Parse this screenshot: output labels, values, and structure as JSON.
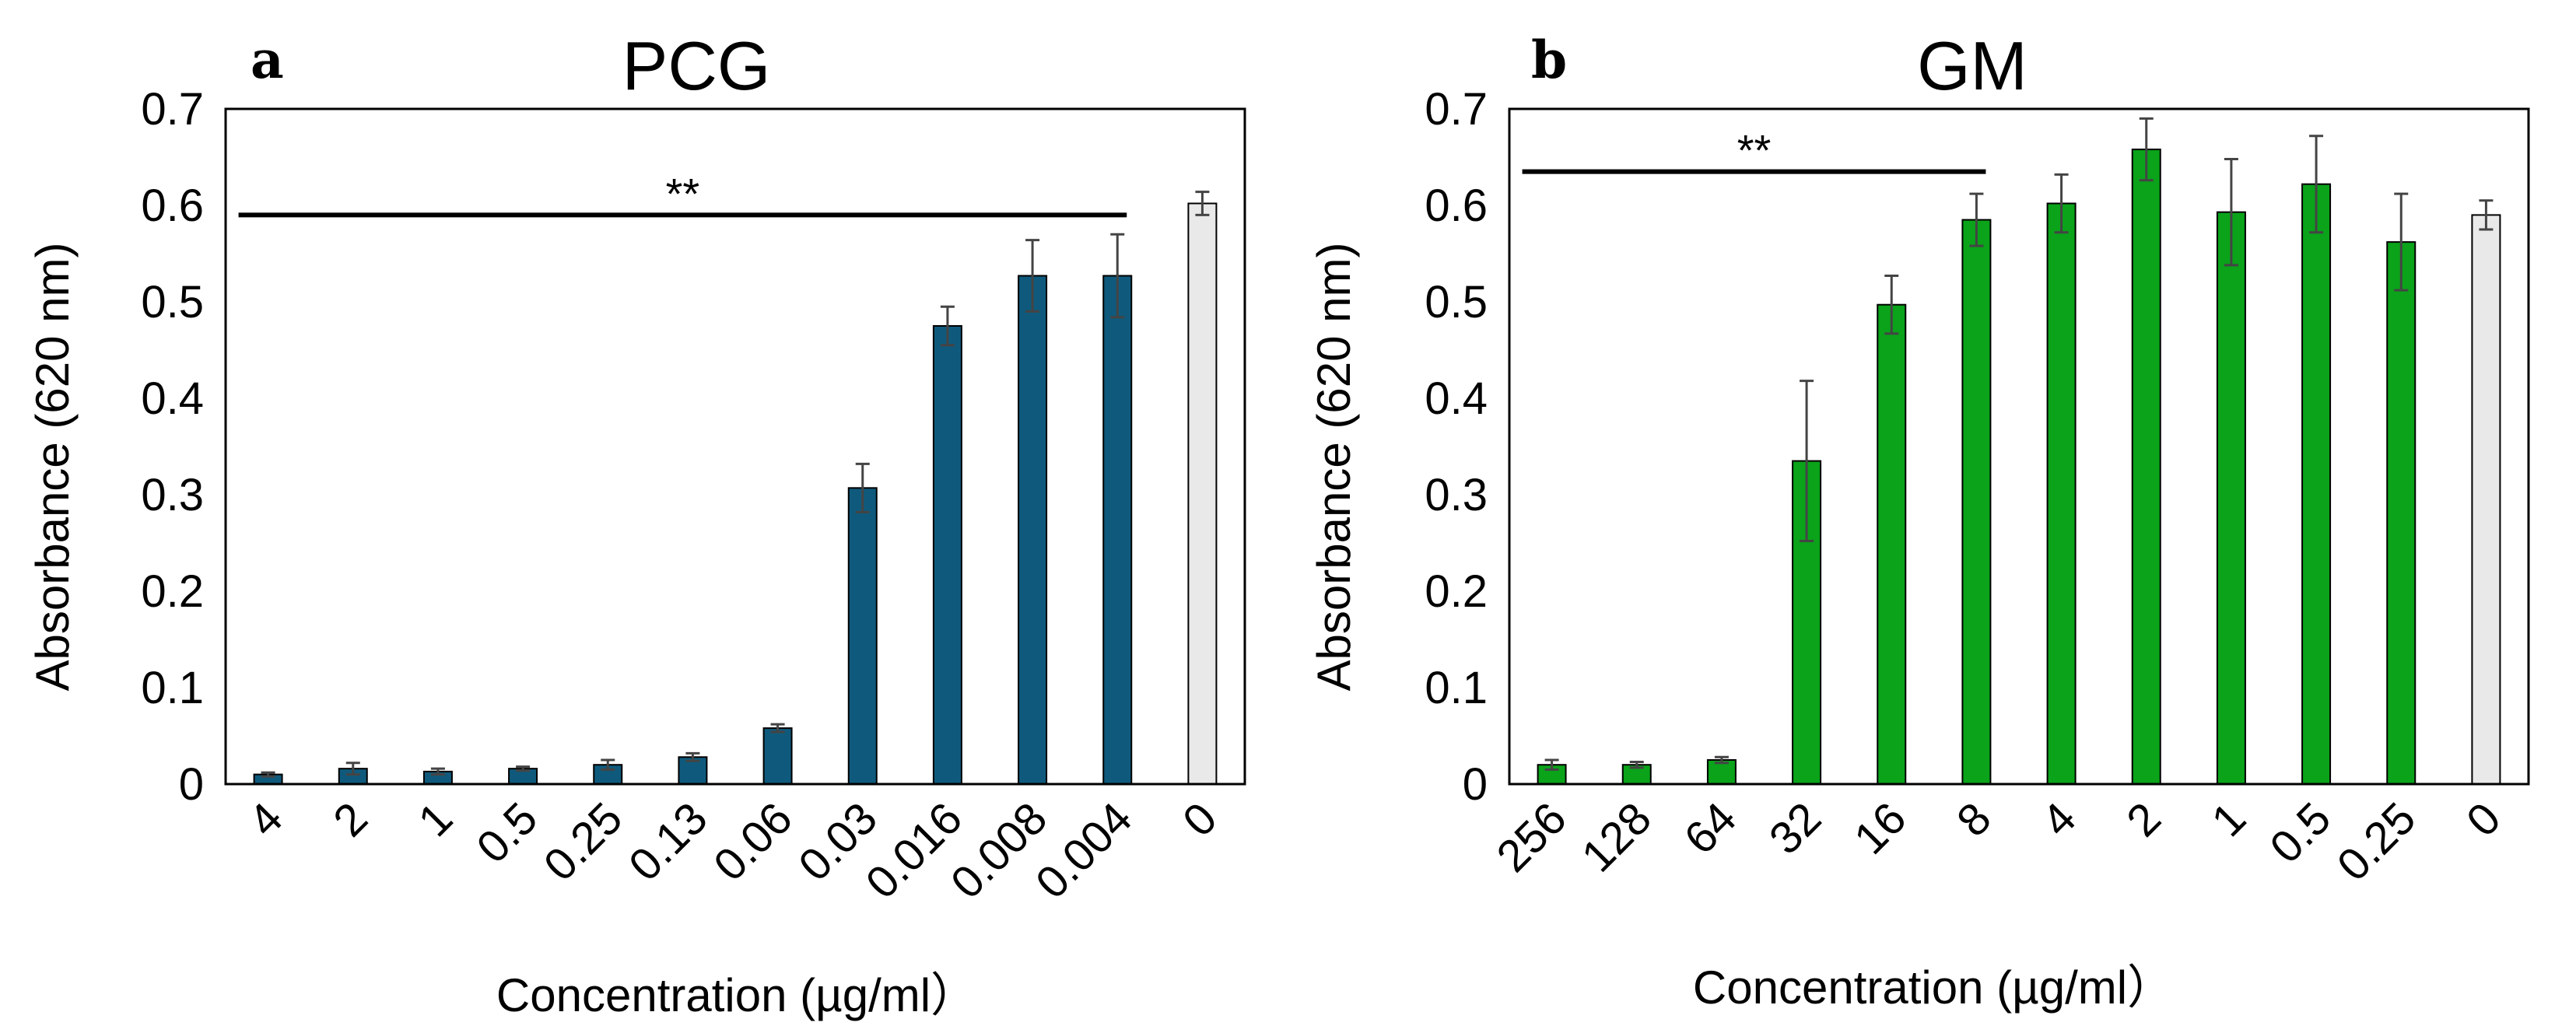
{
  "chart_data": [
    {
      "type": "bar",
      "panel": "a",
      "title": "PCG",
      "xlabel": "Concentration (µg/ml）",
      "ylabel": "Absorbance (620 nm)",
      "ylim": [
        0,
        0.7
      ],
      "yticks": [
        "0",
        "0.1",
        "0.2",
        "0.3",
        "0.4",
        "0.5",
        "0.6",
        "0.7"
      ],
      "grid": false,
      "categories": [
        "4",
        "2",
        "1",
        "0.5",
        "0.25",
        "0.13",
        "0.06",
        "0.03",
        "0.016",
        "0.008",
        "0.004",
        "0"
      ],
      "values": [
        0.01,
        0.016,
        0.013,
        0.016,
        0.02,
        0.028,
        0.058,
        0.307,
        0.475,
        0.527,
        0.527,
        0.602
      ],
      "errors": [
        0.002,
        0.006,
        0.003,
        0.002,
        0.005,
        0.004,
        0.004,
        0.025,
        0.02,
        0.037,
        0.043,
        0.012
      ],
      "colors": [
        "#0f5a7c",
        "#0f5a7c",
        "#0f5a7c",
        "#0f5a7c",
        "#0f5a7c",
        "#0f5a7c",
        "#0f5a7c",
        "#0f5a7c",
        "#0f5a7c",
        "#0f5a7c",
        "#0f5a7c",
        "#e9e9e9"
      ],
      "significance": {
        "label": "**",
        "from": 0,
        "to": 10,
        "y": 0.59
      }
    },
    {
      "type": "bar",
      "panel": "b",
      "title": "GM",
      "xlabel": "Concentration (µg/ml）",
      "ylabel": "Absorbance (620 nm)",
      "ylim": [
        0,
        0.7
      ],
      "yticks": [
        "0",
        "0.1",
        "0.2",
        "0.3",
        "0.4",
        "0.5",
        "0.6",
        "0.7"
      ],
      "grid": false,
      "categories": [
        "256",
        "128",
        "64",
        "32",
        "16",
        "8",
        "4",
        "2",
        "1",
        "0.5",
        "0.25",
        "0"
      ],
      "values": [
        0.02,
        0.02,
        0.025,
        0.335,
        0.497,
        0.585,
        0.602,
        0.658,
        0.593,
        0.622,
        0.562,
        0.59
      ],
      "errors": [
        0.005,
        0.003,
        0.003,
        0.083,
        0.03,
        0.027,
        0.03,
        0.032,
        0.055,
        0.05,
        0.05,
        0.015
      ],
      "colors": [
        "#0aa31a",
        "#0aa31a",
        "#0aa31a",
        "#0aa31a",
        "#0aa31a",
        "#0aa31a",
        "#0aa31a",
        "#0aa31a",
        "#0aa31a",
        "#0aa31a",
        "#0aa31a",
        "#e9e9e9"
      ],
      "significance": {
        "label": "**",
        "from": 0,
        "to": 5,
        "y": 0.635
      }
    }
  ]
}
